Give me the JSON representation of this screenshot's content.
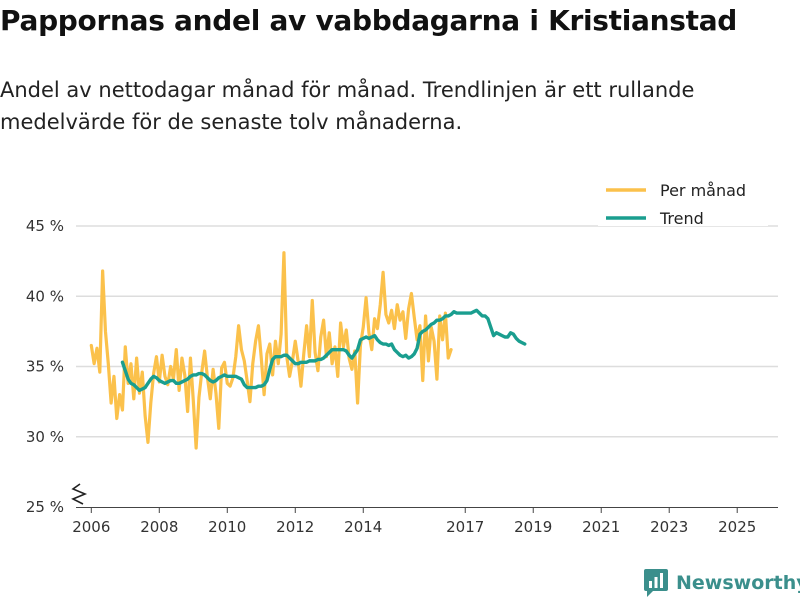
{
  "header": {
    "title": "Pappornas andel av vabbdagarna i Kristianstad",
    "subtitle": "Andel av nettodagar månad för månad. Trendlinjen är ett rullande medelvärde för de senaste tolv månaderna."
  },
  "brand": {
    "name": "Newsworthy",
    "icon": "newsworthy-logo-icon"
  },
  "colors": {
    "monthly": "#fbc14b",
    "trend": "#1a9e8f",
    "grid": "#dddddd",
    "brand": "#3b8f8c"
  },
  "chart_data": {
    "type": "line",
    "title": "Pappornas andel av vabbdagarna i Kristianstad",
    "xlabel": "",
    "ylabel": "",
    "ylim": [
      25,
      45
    ],
    "y_ticks": [
      {
        "value": 25,
        "label": "25 %"
      },
      {
        "value": 30,
        "label": "30 %"
      },
      {
        "value": 35,
        "label": "35 %"
      },
      {
        "value": 40,
        "label": "40 %"
      },
      {
        "value": 45,
        "label": "45 %"
      }
    ],
    "x_range": [
      2005.55,
      2026.2
    ],
    "x_ticks": [
      {
        "value": 2006.0,
        "label": "2006"
      },
      {
        "value": 2008.0,
        "label": "2008"
      },
      {
        "value": 2010.0,
        "label": "2010"
      },
      {
        "value": 2012.0,
        "label": "2012"
      },
      {
        "value": 2014.0,
        "label": "2014"
      },
      {
        "value": 2017.0,
        "label": "2017"
      },
      {
        "value": 2019.0,
        "label": "2019"
      },
      {
        "value": 2021.0,
        "label": "2021"
      },
      {
        "value": 2023.0,
        "label": "2023"
      },
      {
        "value": 2025.0,
        "label": "2025"
      }
    ],
    "legend": {
      "position": "top-right",
      "entries": [
        "Per månad",
        "Trend"
      ]
    },
    "series": [
      {
        "name": "Per månad",
        "start": 2006.0,
        "step_months": 1,
        "values": [
          36.5,
          35.2,
          36.3,
          34.6,
          41.8,
          37.5,
          35.2,
          32.4,
          34.3,
          31.3,
          33.0,
          31.9,
          36.4,
          33.8,
          35.2,
          32.7,
          35.6,
          33.1,
          34.6,
          31.5,
          29.6,
          32.4,
          34.5,
          35.7,
          33.9,
          35.8,
          34.3,
          33.7,
          35.0,
          34.1,
          36.2,
          33.3,
          35.6,
          34.4,
          31.8,
          35.6,
          32.6,
          29.2,
          32.8,
          34.6,
          36.1,
          34.2,
          32.7,
          34.8,
          33.1,
          30.6,
          34.9,
          35.3,
          33.8,
          33.6,
          34.2,
          35.7,
          37.9,
          36.2,
          35.4,
          34.0,
          32.5,
          35.2,
          36.8,
          37.9,
          35.6,
          33.0,
          35.9,
          36.6,
          34.4,
          36.8,
          35.2,
          37.3,
          43.1,
          35.7,
          34.3,
          35.4,
          36.8,
          35.4,
          33.6,
          35.9,
          37.9,
          35.7,
          39.7,
          36.0,
          34.7,
          37.1,
          38.3,
          35.7,
          37.4,
          35.2,
          36.4,
          34.3,
          38.1,
          36.4,
          37.6,
          35.6,
          34.8,
          36.1,
          32.4,
          36.5,
          37.8,
          39.9,
          37.4,
          36.2,
          38.4,
          37.7,
          39.4,
          41.7,
          38.7,
          38.1,
          39.0,
          37.7,
          39.4,
          38.3,
          38.9,
          37.0,
          39.1,
          40.2,
          38.5,
          36.9,
          37.9,
          34.0,
          38.6,
          35.4,
          37.8,
          36.8,
          34.1,
          38.6,
          36.9,
          38.8,
          35.6,
          36.2
        ]
      },
      {
        "name": "Trend",
        "start": 2006.917,
        "step_months": 1,
        "values": [
          35.3,
          34.7,
          34.1,
          33.8,
          33.7,
          33.5,
          33.3,
          33.4,
          33.5,
          33.8,
          34.1,
          34.3,
          34.2,
          34.0,
          33.9,
          33.8,
          33.9,
          34.0,
          34.0,
          33.8,
          33.8,
          33.9,
          34.0,
          34.1,
          34.3,
          34.4,
          34.4,
          34.5,
          34.5,
          34.4,
          34.2,
          34.0,
          33.9,
          34.0,
          34.2,
          34.3,
          34.4,
          34.3,
          34.3,
          34.3,
          34.3,
          34.2,
          34.1,
          33.7,
          33.5,
          33.5,
          33.5,
          33.5,
          33.6,
          33.6,
          33.7,
          34.0,
          34.8,
          35.5,
          35.7,
          35.7,
          35.7,
          35.8,
          35.8,
          35.6,
          35.4,
          35.2,
          35.2,
          35.3,
          35.3,
          35.3,
          35.4,
          35.4,
          35.4,
          35.5,
          35.5,
          35.6,
          35.8,
          36.0,
          36.2,
          36.2,
          36.2,
          36.2,
          36.2,
          36.1,
          35.8,
          35.6,
          35.9,
          36.2,
          36.9,
          37.0,
          37.1,
          37.0,
          37.1,
          37.2,
          36.9,
          36.7,
          36.6,
          36.6,
          36.5,
          36.6,
          36.2,
          36.0,
          35.8,
          35.7,
          35.8,
          35.6,
          35.7,
          35.9,
          36.3,
          37.3,
          37.5,
          37.6,
          37.8,
          38.0,
          38.1,
          38.3,
          38.3,
          38.4,
          38.6,
          38.6,
          38.7,
          38.9,
          38.8,
          38.8,
          38.8,
          38.8,
          38.8,
          38.8,
          38.9,
          39.0,
          38.8,
          38.6,
          38.6,
          38.4,
          37.8,
          37.2,
          37.4,
          37.3,
          37.2,
          37.1,
          37.1,
          37.4,
          37.3,
          37.0,
          36.8,
          36.7,
          36.6
        ]
      }
    ]
  }
}
